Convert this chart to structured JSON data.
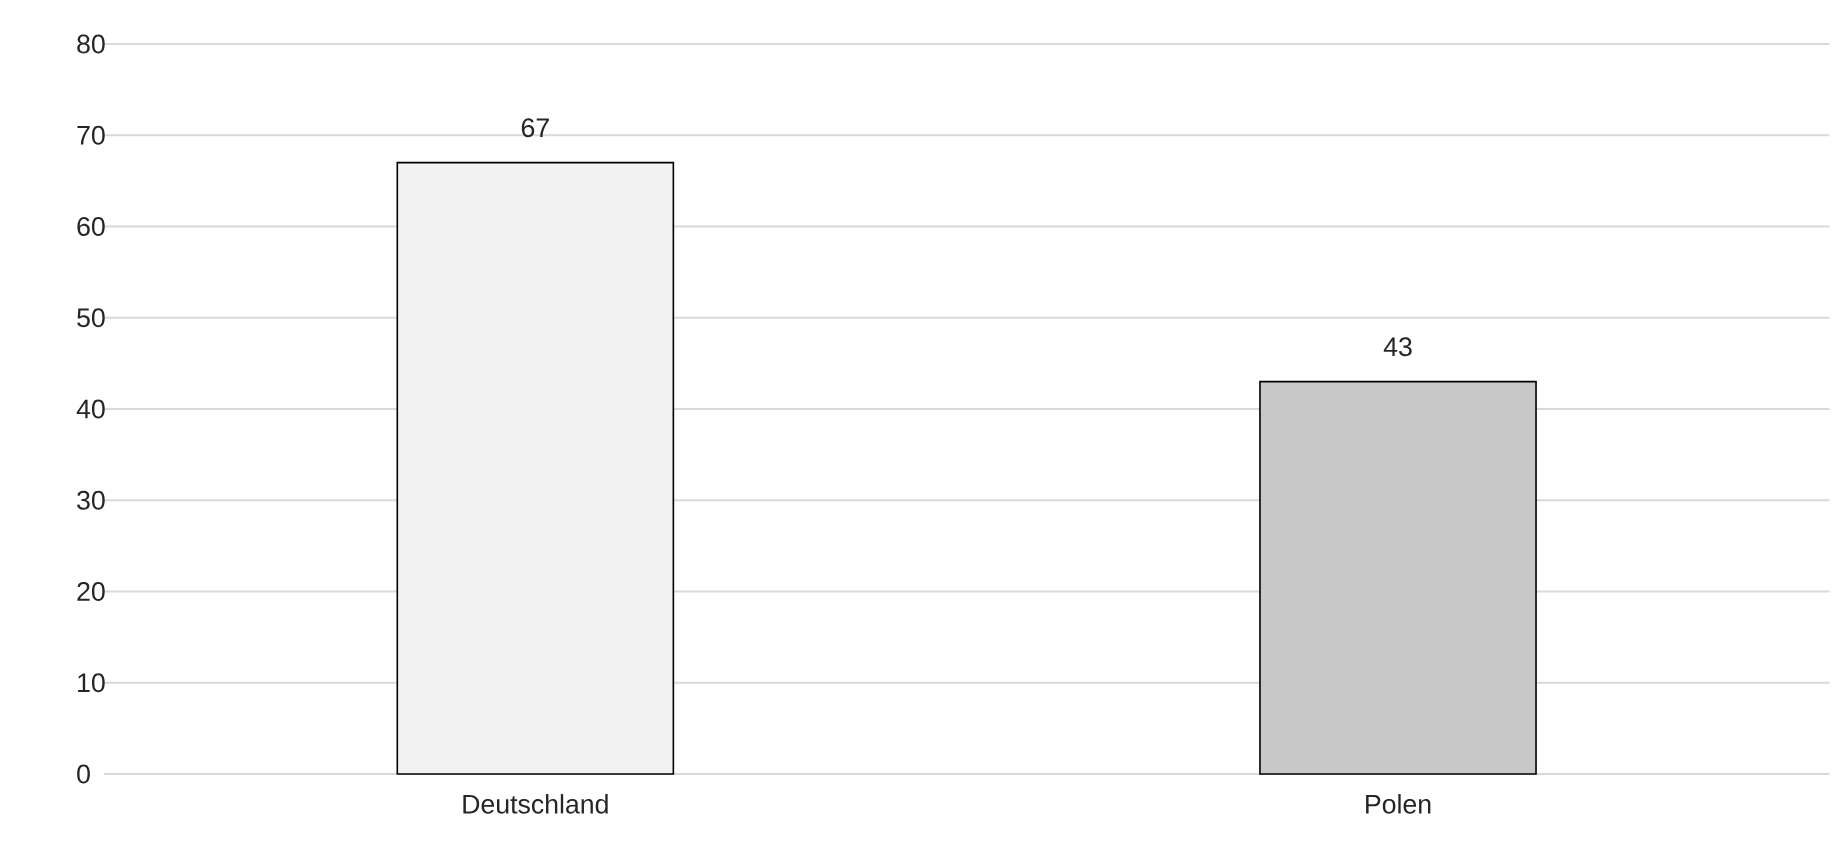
{
  "chart_data": {
    "type": "bar",
    "categories": [
      "Deutschland",
      "Polen"
    ],
    "values": [
      67,
      43
    ],
    "colors": [
      "#f2f2f2",
      "#c8c8c8"
    ],
    "ylim": [
      0,
      80
    ],
    "yticks": [
      0,
      10,
      20,
      30,
      40,
      50,
      60,
      70,
      80
    ],
    "grid": "y",
    "data_labels": true
  }
}
